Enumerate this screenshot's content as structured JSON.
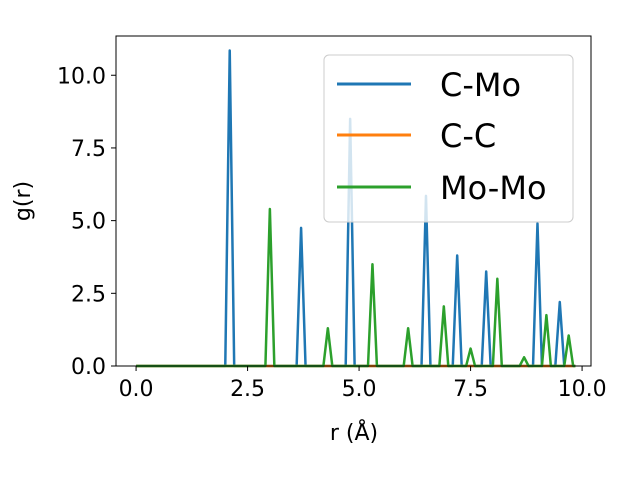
{
  "chart_data": {
    "type": "line",
    "xlabel": "r (Å)",
    "ylabel": "g(r)",
    "xlim": [
      -0.45,
      10.2
    ],
    "ylim": [
      0,
      11.35
    ],
    "xticks": [
      0.0,
      2.5,
      5.0,
      7.5,
      10.0
    ],
    "xtick_labels": [
      "0.0",
      "2.5",
      "5.0",
      "7.5",
      "10.0"
    ],
    "yticks": [
      0.0,
      2.5,
      5.0,
      7.5,
      10.0
    ],
    "ytick_labels": [
      "0.0",
      "2.5",
      "5.0",
      "7.5",
      "10.0"
    ],
    "legend_position": "upper right",
    "grid": false,
    "series": [
      {
        "name": "C-Mo",
        "color": "#1f77b4",
        "x": [
          0.0,
          2.0,
          2.1,
          2.2,
          3.6,
          3.7,
          3.8,
          4.7,
          4.8,
          4.9,
          6.4,
          6.5,
          6.6,
          7.1,
          7.2,
          7.3,
          7.75,
          7.85,
          7.95,
          8.9,
          9.0,
          9.1,
          9.4,
          9.5,
          9.6,
          9.85
        ],
        "y": [
          0,
          0,
          10.85,
          0,
          0,
          4.75,
          0,
          0,
          8.5,
          0,
          0,
          5.85,
          0,
          0,
          3.8,
          0,
          0,
          3.25,
          0,
          0,
          4.9,
          0,
          0,
          2.2,
          0,
          0
        ]
      },
      {
        "name": "C-C",
        "color": "#ff7f0e",
        "x": [
          0.0,
          9.85
        ],
        "y": [
          0,
          0
        ]
      },
      {
        "name": "Mo-Mo",
        "color": "#2ca02c",
        "x": [
          0.0,
          2.9,
          3.0,
          3.1,
          4.2,
          4.3,
          4.4,
          5.2,
          5.3,
          5.4,
          6.0,
          6.1,
          6.2,
          6.8,
          6.9,
          7.0,
          7.4,
          7.5,
          7.6,
          8.0,
          8.1,
          8.2,
          8.6,
          8.7,
          8.8,
          9.1,
          9.2,
          9.3,
          9.6,
          9.7,
          9.8,
          9.85
        ],
        "y": [
          0,
          0,
          5.4,
          0,
          0,
          1.3,
          0,
          0,
          3.5,
          0,
          0,
          1.3,
          0,
          0,
          2.05,
          0,
          0,
          0.6,
          0,
          0,
          3.0,
          0,
          0,
          0.3,
          0,
          0,
          1.75,
          0,
          0,
          1.05,
          0,
          0
        ]
      }
    ]
  }
}
